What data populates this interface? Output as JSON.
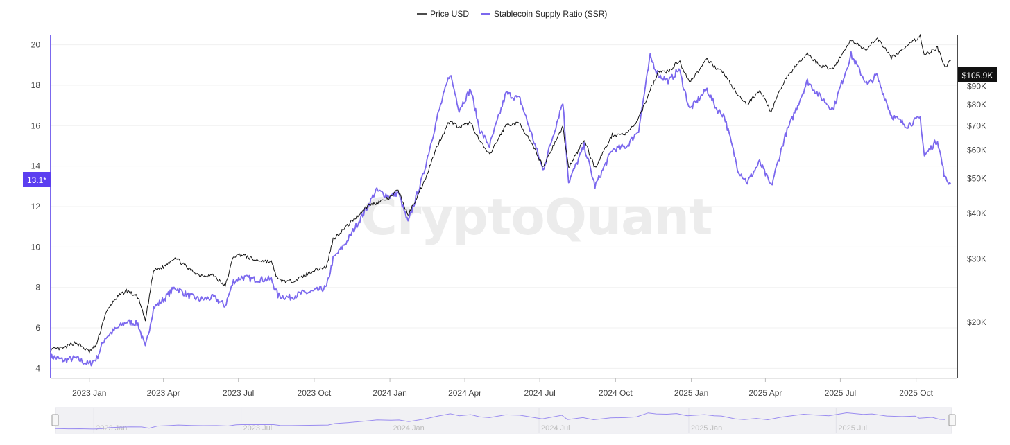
{
  "legend": [
    {
      "name": "Price USD",
      "color": "#111111"
    },
    {
      "name": "Stablecoin Supply Ratio (SSR)",
      "color": "#7b68ee"
    }
  ],
  "watermark": "CryptoQuant",
  "colors": {
    "price": "#111111",
    "ssr": "#7b68ee",
    "ssr_badge": "#5b3ef0",
    "price_badge": "#111111"
  },
  "current": {
    "ssr_label": "13.1*",
    "ssr_value": 13.1,
    "price_label": "$105.9K",
    "price_value": 105900
  },
  "navigator": {
    "labels": [
      "2023 Jan",
      "2023 Jul",
      "2024 Jan",
      "2024 Jul",
      "2025 Jan",
      "2025 Jul"
    ]
  },
  "chart_data": {
    "type": "line",
    "grid": "horizontal",
    "legend_position": "top-center",
    "x_ticks": [
      "2023 Jan",
      "2023 Apr",
      "2023 Jul",
      "2023 Oct",
      "2024 Jan",
      "2024 Apr",
      "2024 Jul",
      "2024 Oct",
      "2025 Jan",
      "2025 Apr",
      "2025 Jul",
      "2025 Oct"
    ],
    "x_range": [
      "2022-11-15",
      "2025-11-20"
    ],
    "y_left": {
      "ticks": [
        "4",
        "6",
        "8",
        "10",
        "12",
        "14",
        "16",
        "18",
        "20"
      ],
      "range": [
        3.5,
        20.5
      ]
    },
    "y_right": {
      "scale": "log",
      "ticks": [
        20000,
        30000,
        40000,
        50000,
        60000,
        70000,
        80000,
        90000,
        100000
      ],
      "tick_labels": [
        "$20K",
        "$30K",
        "$40K",
        "$50K",
        "$60K",
        "$70K",
        "$80K",
        "$90K",
        "$100K"
      ],
      "range": [
        14000,
        125000
      ]
    },
    "series": [
      {
        "name": "Price USD",
        "axis": "right",
        "points": [
          [
            "2022-11-15",
            16800
          ],
          [
            "2022-12-01",
            17000
          ],
          [
            "2022-12-15",
            17600
          ],
          [
            "2023-01-01",
            16600
          ],
          [
            "2023-01-10",
            17400
          ],
          [
            "2023-01-20",
            21000
          ],
          [
            "2023-02-01",
            23200
          ],
          [
            "2023-02-15",
            24500
          ],
          [
            "2023-03-01",
            23500
          ],
          [
            "2023-03-10",
            20200
          ],
          [
            "2023-03-20",
            27800
          ],
          [
            "2023-04-01",
            28500
          ],
          [
            "2023-04-15",
            30300
          ],
          [
            "2023-05-01",
            28200
          ],
          [
            "2023-05-15",
            27000
          ],
          [
            "2023-06-01",
            27000
          ],
          [
            "2023-06-15",
            25100
          ],
          [
            "2023-06-25",
            30500
          ],
          [
            "2023-07-05",
            30800
          ],
          [
            "2023-07-20",
            29800
          ],
          [
            "2023-08-10",
            29400
          ],
          [
            "2023-08-18",
            26200
          ],
          [
            "2023-09-01",
            25900
          ],
          [
            "2023-09-15",
            26600
          ],
          [
            "2023-10-01",
            27900
          ],
          [
            "2023-10-16",
            28500
          ],
          [
            "2023-10-24",
            34000
          ],
          [
            "2023-11-10",
            37000
          ],
          [
            "2023-12-05",
            42000
          ],
          [
            "2023-12-15",
            42800
          ],
          [
            "2024-01-01",
            44200
          ],
          [
            "2024-01-11",
            46500
          ],
          [
            "2024-01-23",
            39500
          ],
          [
            "2024-02-10",
            48000
          ],
          [
            "2024-02-28",
            62000
          ],
          [
            "2024-03-14",
            72500
          ],
          [
            "2024-03-25",
            69000
          ],
          [
            "2024-04-08",
            71500
          ],
          [
            "2024-04-19",
            63500
          ],
          [
            "2024-05-01",
            58000
          ],
          [
            "2024-05-21",
            70500
          ],
          [
            "2024-06-07",
            71000
          ],
          [
            "2024-06-24",
            60500
          ],
          [
            "2024-07-05",
            54000
          ],
          [
            "2024-07-29",
            69500
          ],
          [
            "2024-08-05",
            53500
          ],
          [
            "2024-08-24",
            64000
          ],
          [
            "2024-09-06",
            53500
          ],
          [
            "2024-09-27",
            66000
          ],
          [
            "2024-10-15",
            66500
          ],
          [
            "2024-10-29",
            73000
          ],
          [
            "2024-11-12",
            88000
          ],
          [
            "2024-11-22",
            98500
          ],
          [
            "2024-12-05",
            99000
          ],
          [
            "2024-12-17",
            106000
          ],
          [
            "2024-12-30",
            92500
          ],
          [
            "2025-01-20",
            106500
          ],
          [
            "2025-02-01",
            101000
          ],
          [
            "2025-02-10",
            97500
          ],
          [
            "2025-02-27",
            84500
          ],
          [
            "2025-03-10",
            80000
          ],
          [
            "2025-03-25",
            88000
          ],
          [
            "2025-04-08",
            76500
          ],
          [
            "2025-04-25",
            94500
          ],
          [
            "2025-05-22",
            111000
          ],
          [
            "2025-06-05",
            103000
          ],
          [
            "2025-06-22",
            100500
          ],
          [
            "2025-07-14",
            121000
          ],
          [
            "2025-08-03",
            113000
          ],
          [
            "2025-08-14",
            123000
          ],
          [
            "2025-09-01",
            108000
          ],
          [
            "2025-09-20",
            116000
          ],
          [
            "2025-10-06",
            124000
          ],
          [
            "2025-10-11",
            110000
          ],
          [
            "2025-10-27",
            115000
          ],
          [
            "2025-11-05",
            101000
          ],
          [
            "2025-11-12",
            105900
          ]
        ]
      },
      {
        "name": "Stablecoin Supply Ratio (SSR)",
        "axis": "left",
        "points": [
          [
            "2022-11-15",
            4.6
          ],
          [
            "2022-12-01",
            4.4
          ],
          [
            "2022-12-15",
            4.5
          ],
          [
            "2023-01-01",
            4.2
          ],
          [
            "2023-01-10",
            4.5
          ],
          [
            "2023-01-20",
            5.5
          ],
          [
            "2023-02-01",
            5.9
          ],
          [
            "2023-02-15",
            6.3
          ],
          [
            "2023-03-01",
            6.2
          ],
          [
            "2023-03-10",
            5.0
          ],
          [
            "2023-03-20",
            7.0
          ],
          [
            "2023-04-01",
            7.4
          ],
          [
            "2023-04-15",
            8.0
          ],
          [
            "2023-05-01",
            7.6
          ],
          [
            "2023-05-15",
            7.4
          ],
          [
            "2023-06-01",
            7.5
          ],
          [
            "2023-06-15",
            7.1
          ],
          [
            "2023-06-25",
            8.3
          ],
          [
            "2023-07-05",
            8.5
          ],
          [
            "2023-07-20",
            8.4
          ],
          [
            "2023-08-10",
            8.4
          ],
          [
            "2023-08-18",
            7.6
          ],
          [
            "2023-09-01",
            7.5
          ],
          [
            "2023-09-15",
            7.7
          ],
          [
            "2023-10-01",
            7.8
          ],
          [
            "2023-10-16",
            8.0
          ],
          [
            "2023-10-24",
            9.4
          ],
          [
            "2023-11-10",
            10.3
          ],
          [
            "2023-12-05",
            12.0
          ],
          [
            "2023-12-15",
            12.8
          ],
          [
            "2024-01-01",
            12.5
          ],
          [
            "2024-01-11",
            12.7
          ],
          [
            "2024-01-23",
            11.2
          ],
          [
            "2024-02-10",
            13.5
          ],
          [
            "2024-02-28",
            16.5
          ],
          [
            "2024-03-14",
            18.6
          ],
          [
            "2024-03-25",
            16.8
          ],
          [
            "2024-04-08",
            17.8
          ],
          [
            "2024-04-19",
            15.8
          ],
          [
            "2024-05-01",
            15.0
          ],
          [
            "2024-05-21",
            17.6
          ],
          [
            "2024-06-07",
            17.3
          ],
          [
            "2024-06-24",
            15.2
          ],
          [
            "2024-07-05",
            13.8
          ],
          [
            "2024-07-29",
            17.2
          ],
          [
            "2024-08-05",
            13.2
          ],
          [
            "2024-08-24",
            15.0
          ],
          [
            "2024-09-06",
            13.0
          ],
          [
            "2024-09-27",
            14.8
          ],
          [
            "2024-10-15",
            15.0
          ],
          [
            "2024-10-29",
            15.8
          ],
          [
            "2024-11-12",
            19.4
          ],
          [
            "2024-11-22",
            18.5
          ],
          [
            "2024-12-05",
            18.2
          ],
          [
            "2024-12-17",
            18.8
          ],
          [
            "2024-12-30",
            16.8
          ],
          [
            "2025-01-20",
            17.8
          ],
          [
            "2025-02-01",
            16.8
          ],
          [
            "2025-02-10",
            16.5
          ],
          [
            "2025-02-27",
            13.8
          ],
          [
            "2025-03-10",
            13.2
          ],
          [
            "2025-03-25",
            14.2
          ],
          [
            "2025-04-08",
            13.0
          ],
          [
            "2025-04-25",
            15.5
          ],
          [
            "2025-05-22",
            18.2
          ],
          [
            "2025-06-05",
            17.5
          ],
          [
            "2025-06-22",
            16.8
          ],
          [
            "2025-07-14",
            19.5
          ],
          [
            "2025-08-03",
            18.0
          ],
          [
            "2025-08-14",
            18.5
          ],
          [
            "2025-09-01",
            16.5
          ],
          [
            "2025-09-20",
            16.0
          ],
          [
            "2025-10-06",
            16.4
          ],
          [
            "2025-10-11",
            14.5
          ],
          [
            "2025-10-27",
            15.3
          ],
          [
            "2025-11-05",
            13.4
          ],
          [
            "2025-11-12",
            13.1
          ]
        ]
      }
    ]
  }
}
